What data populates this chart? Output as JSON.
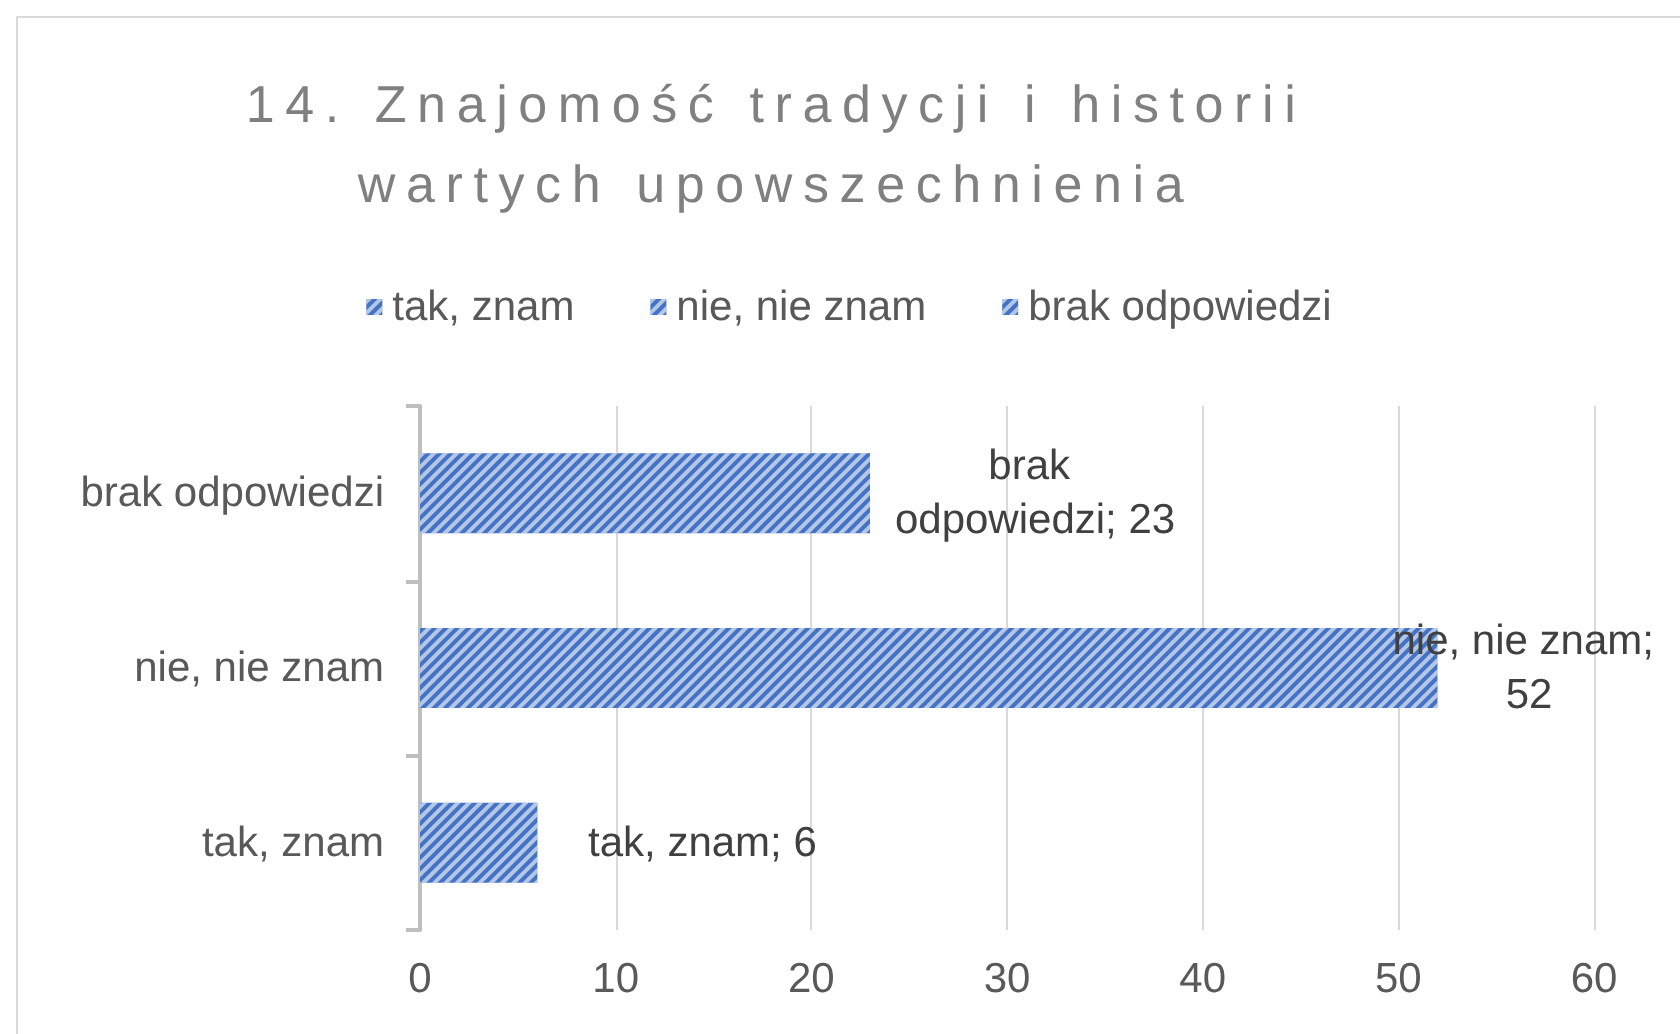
{
  "chart_data": {
    "type": "bar",
    "title": "14. Znajomość tradycji i historii wartych upowszechnienia",
    "orientation": "horizontal",
    "categories": [
      "brak odpowiedzi",
      "nie, nie znam",
      "tak, znam"
    ],
    "series": [
      {
        "name": "tak, znam",
        "color": "#4472c4",
        "values": [
          null,
          null,
          6
        ],
        "value_labels": [
          null,
          null,
          "tak, znam; 6"
        ]
      },
      {
        "name": "nie, nie znam",
        "color": "#4472c4",
        "values": [
          null,
          52,
          null
        ],
        "value_labels": [
          null,
          "nie, nie znam; 52",
          null
        ]
      },
      {
        "name": "brak odpowiedzi",
        "color": "#4472c4",
        "values": [
          23,
          null,
          null
        ],
        "value_labels": [
          "brak odpowiedzi; 23",
          null,
          null
        ]
      }
    ],
    "xlim": [
      0,
      60
    ],
    "xticks": [
      0,
      10,
      20,
      30,
      40,
      50,
      60
    ],
    "grid": "x",
    "legend": "top"
  }
}
